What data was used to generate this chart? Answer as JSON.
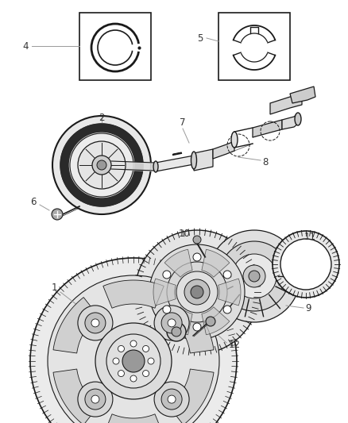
{
  "bg_color": "#ffffff",
  "lc": "#1a1a1a",
  "label_color": "#555555",
  "line_color_leader": "#999999"
}
